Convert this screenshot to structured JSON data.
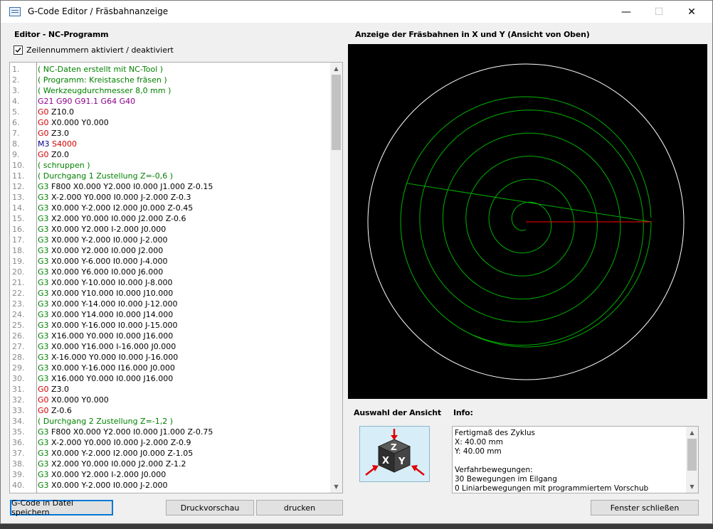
{
  "window": {
    "title": "G-Code Editor / Fräsbahnanzeige",
    "minimize": "—",
    "maximize": "☐",
    "close": "✕"
  },
  "editor": {
    "heading": "Editor - NC-Programm",
    "checkbox_label": "Zeilennummern aktiviert / deaktiviert",
    "checkbox_checked": true,
    "lines": [
      {
        "n": "1.",
        "parts": [
          {
            "t": "( NC-Daten erstellt mit NC-Tool )",
            "c": "#008000"
          }
        ]
      },
      {
        "n": "2.",
        "parts": [
          {
            "t": "( Programm: Kreistasche fräsen )",
            "c": "#008000"
          }
        ]
      },
      {
        "n": "3.",
        "parts": [
          {
            "t": "( Werkzeugdurchmesser 8,0 mm )",
            "c": "#008000"
          }
        ]
      },
      {
        "n": "4.",
        "parts": [
          {
            "t": "G21 G90 G91.1 G64 G40",
            "c": "#8b008b"
          }
        ]
      },
      {
        "n": "5.",
        "parts": [
          {
            "t": "G0",
            "c": "#d00000"
          },
          {
            "t": " Z10.0",
            "c": "#000000"
          }
        ]
      },
      {
        "n": "6.",
        "parts": [
          {
            "t": "G0",
            "c": "#d00000"
          },
          {
            "t": " X0.000 Y0.000",
            "c": "#000000"
          }
        ]
      },
      {
        "n": "7.",
        "parts": [
          {
            "t": "G0",
            "c": "#d00000"
          },
          {
            "t": " Z3.0",
            "c": "#000000"
          }
        ]
      },
      {
        "n": "8.",
        "parts": [
          {
            "t": "M3",
            "c": "#00008b"
          },
          {
            "t": " S4000",
            "c": "#d00000"
          }
        ]
      },
      {
        "n": "9.",
        "parts": [
          {
            "t": "G0",
            "c": "#d00000"
          },
          {
            "t": " Z0.0",
            "c": "#000000"
          }
        ]
      },
      {
        "n": "10.",
        "parts": [
          {
            "t": "( schruppen )",
            "c": "#008000"
          }
        ]
      },
      {
        "n": "11.",
        "parts": [
          {
            "t": "( Durchgang 1 Zustellung Z=-0,6 )",
            "c": "#008000"
          }
        ]
      },
      {
        "n": "12.",
        "parts": [
          {
            "t": "G3",
            "c": "#008000"
          },
          {
            "t": " F800 X0.000 Y2.000 I0.000 J1.000 Z-0.15",
            "c": "#000000"
          }
        ]
      },
      {
        "n": "13.",
        "parts": [
          {
            "t": "G3",
            "c": "#008000"
          },
          {
            "t": " X-2.000 Y0.000 I0.000 J-2.000 Z-0.3",
            "c": "#000000"
          }
        ]
      },
      {
        "n": "14.",
        "parts": [
          {
            "t": "G3",
            "c": "#008000"
          },
          {
            "t": " X0.000 Y-2.000 I2.000 J0.000 Z-0.45",
            "c": "#000000"
          }
        ]
      },
      {
        "n": "15.",
        "parts": [
          {
            "t": "G3",
            "c": "#008000"
          },
          {
            "t": " X2.000 Y0.000 I0.000 J2.000 Z-0.6",
            "c": "#000000"
          }
        ]
      },
      {
        "n": "16.",
        "parts": [
          {
            "t": "G3",
            "c": "#008000"
          },
          {
            "t": " X0.000 Y2.000 I-2.000 J0.000",
            "c": "#000000"
          }
        ]
      },
      {
        "n": "17.",
        "parts": [
          {
            "t": "G3",
            "c": "#008000"
          },
          {
            "t": " X0.000 Y-2.000 I0.000 J-2.000",
            "c": "#000000"
          }
        ]
      },
      {
        "n": "18.",
        "parts": [
          {
            "t": "G3",
            "c": "#008000"
          },
          {
            "t": " X0.000 Y2.000 I0.000 J2.000",
            "c": "#000000"
          }
        ]
      },
      {
        "n": "19.",
        "parts": [
          {
            "t": "G3",
            "c": "#008000"
          },
          {
            "t": " X0.000 Y-6.000 I0.000 J-4.000",
            "c": "#000000"
          }
        ]
      },
      {
        "n": "20.",
        "parts": [
          {
            "t": "G3",
            "c": "#008000"
          },
          {
            "t": " X0.000 Y6.000 I0.000 J6.000",
            "c": "#000000"
          }
        ]
      },
      {
        "n": "21.",
        "parts": [
          {
            "t": "G3",
            "c": "#008000"
          },
          {
            "t": " X0.000 Y-10.000 I0.000 J-8.000",
            "c": "#000000"
          }
        ]
      },
      {
        "n": "22.",
        "parts": [
          {
            "t": "G3",
            "c": "#008000"
          },
          {
            "t": " X0.000 Y10.000 I0.000 J10.000",
            "c": "#000000"
          }
        ]
      },
      {
        "n": "23.",
        "parts": [
          {
            "t": "G3",
            "c": "#008000"
          },
          {
            "t": " X0.000 Y-14.000 I0.000 J-12.000",
            "c": "#000000"
          }
        ]
      },
      {
        "n": "24.",
        "parts": [
          {
            "t": "G3",
            "c": "#008000"
          },
          {
            "t": " X0.000 Y14.000 I0.000 J14.000",
            "c": "#000000"
          }
        ]
      },
      {
        "n": "25.",
        "parts": [
          {
            "t": "G3",
            "c": "#008000"
          },
          {
            "t": " X0.000 Y-16.000 I0.000 J-15.000",
            "c": "#000000"
          }
        ]
      },
      {
        "n": "26.",
        "parts": [
          {
            "t": "G3",
            "c": "#008000"
          },
          {
            "t": " X16.000 Y0.000 I0.000 J16.000",
            "c": "#000000"
          }
        ]
      },
      {
        "n": "27.",
        "parts": [
          {
            "t": "G3",
            "c": "#008000"
          },
          {
            "t": " X0.000 Y16.000 I-16.000 J0.000",
            "c": "#000000"
          }
        ]
      },
      {
        "n": "28.",
        "parts": [
          {
            "t": "G3",
            "c": "#008000"
          },
          {
            "t": " X-16.000 Y0.000 I0.000 J-16.000",
            "c": "#000000"
          }
        ]
      },
      {
        "n": "29.",
        "parts": [
          {
            "t": "G3",
            "c": "#008000"
          },
          {
            "t": " X0.000 Y-16.000 I16.000 J0.000",
            "c": "#000000"
          }
        ]
      },
      {
        "n": "30.",
        "parts": [
          {
            "t": "G3",
            "c": "#008000"
          },
          {
            "t": " X16.000 Y0.000 I0.000 J16.000",
            "c": "#000000"
          }
        ]
      },
      {
        "n": "31.",
        "parts": [
          {
            "t": "G0",
            "c": "#d00000"
          },
          {
            "t": " Z3.0",
            "c": "#000000"
          }
        ]
      },
      {
        "n": "32.",
        "parts": [
          {
            "t": "G0",
            "c": "#d00000"
          },
          {
            "t": " X0.000 Y0.000",
            "c": "#000000"
          }
        ]
      },
      {
        "n": "33.",
        "parts": [
          {
            "t": "G0",
            "c": "#d00000"
          },
          {
            "t": " Z-0.6",
            "c": "#000000"
          }
        ]
      },
      {
        "n": "34.",
        "parts": [
          {
            "t": "( Durchgang 2 Zustellung Z=-1,2 )",
            "c": "#008000"
          }
        ]
      },
      {
        "n": "35.",
        "parts": [
          {
            "t": "G3",
            "c": "#008000"
          },
          {
            "t": " F800 X0.000 Y2.000 I0.000 J1.000 Z-0.75",
            "c": "#000000"
          }
        ]
      },
      {
        "n": "36.",
        "parts": [
          {
            "t": "G3",
            "c": "#008000"
          },
          {
            "t": " X-2.000 Y0.000 I0.000 J-2.000 Z-0.9",
            "c": "#000000"
          }
        ]
      },
      {
        "n": "37.",
        "parts": [
          {
            "t": "G3",
            "c": "#008000"
          },
          {
            "t": " X0.000 Y-2.000 I2.000 J0.000 Z-1.05",
            "c": "#000000"
          }
        ]
      },
      {
        "n": "38.",
        "parts": [
          {
            "t": "G3",
            "c": "#008000"
          },
          {
            "t": " X2.000 Y0.000 I0.000 J2.000 Z-1.2",
            "c": "#000000"
          }
        ]
      },
      {
        "n": "39.",
        "parts": [
          {
            "t": "G3",
            "c": "#008000"
          },
          {
            "t": " X0.000 Y2.000 I-2.000 J0.000",
            "c": "#000000"
          }
        ]
      },
      {
        "n": "40.",
        "parts": [
          {
            "t": "G3",
            "c": "#008000"
          },
          {
            "t": " X0.000 Y-2.000 I0.000 J-2.000",
            "c": "#000000"
          }
        ]
      }
    ]
  },
  "preview": {
    "heading": "Anzeige der Fräsbahnen in X und Y (Ansicht von Oben)",
    "colors": {
      "background": "#000000",
      "boundary": "#ffffff",
      "path": "#00b000",
      "rapid": "#ff0000"
    }
  },
  "view_selector": {
    "heading": "Auswahl der Ansicht",
    "icon": "xyz-cube-icon",
    "letters": [
      "Z",
      "X",
      "Y"
    ]
  },
  "info": {
    "heading": "Info:",
    "lines": [
      "Fertigmaß des Zyklus",
      "X: 40.00 mm",
      "Y: 40.00 mm",
      "",
      "Verfahrbewegungen:",
      "30 Bewegungen im Eilgang",
      "0 Liniarbewegungen mit programmiertem Vorschub"
    ]
  },
  "buttons": {
    "save": "G-Code in Datei speichern",
    "preview": "Druckvorschau",
    "print": "drucken",
    "close": "Fenster schließen"
  }
}
